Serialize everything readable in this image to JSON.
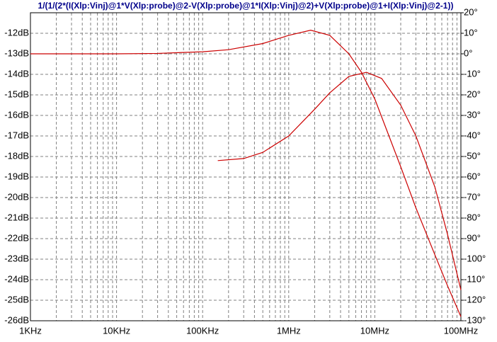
{
  "chart_data": {
    "type": "line",
    "title": "1/(1/(2*(I(Xlp:Vinj)@1*V(Xlp:probe)@2-V(Xlp:probe)@1*I(Xlp:Vinj)@2)+V(Xlp:probe)@1+I(Xlp:Vinj)@2-1))",
    "xscale": "log",
    "xlim": [
      1000,
      100000000
    ],
    "xticks": [
      {
        "value": 1000,
        "label": "1KHz"
      },
      {
        "value": 10000,
        "label": "10KHz"
      },
      {
        "value": 100000,
        "label": "100KHz"
      },
      {
        "value": 1000000,
        "label": "1MHz"
      },
      {
        "value": 10000000,
        "label": "10MHz"
      },
      {
        "value": 100000000,
        "label": "100MHz"
      }
    ],
    "xminorticks": [
      2000,
      3000,
      4000,
      5000,
      6000,
      7000,
      8000,
      9000,
      20000,
      30000,
      40000,
      50000,
      60000,
      70000,
      80000,
      90000,
      200000,
      300000,
      400000,
      500000,
      600000,
      700000,
      800000,
      900000,
      2000000,
      3000000,
      4000000,
      5000000,
      6000000,
      7000000,
      8000000,
      9000000,
      20000000,
      30000000,
      40000000,
      50000000,
      60000000,
      70000000,
      80000000,
      90000000
    ],
    "ylim": [
      -26,
      -11
    ],
    "yticks": [
      {
        "value": -12,
        "label": "-12dB"
      },
      {
        "value": -13,
        "label": "-13dB"
      },
      {
        "value": -14,
        "label": "-14dB"
      },
      {
        "value": -15,
        "label": "-15dB"
      },
      {
        "value": -16,
        "label": "-16dB"
      },
      {
        "value": -17,
        "label": "-17dB"
      },
      {
        "value": -18,
        "label": "-18dB"
      },
      {
        "value": -19,
        "label": "-19dB"
      },
      {
        "value": -20,
        "label": "-20dB"
      },
      {
        "value": -21,
        "label": "-21dB"
      },
      {
        "value": -22,
        "label": "-22dB"
      },
      {
        "value": -23,
        "label": "-23dB"
      },
      {
        "value": -24,
        "label": "-24dB"
      },
      {
        "value": -25,
        "label": "-25dB"
      },
      {
        "value": -26,
        "label": "-26dB"
      }
    ],
    "y2lim": [
      -130,
      20
    ],
    "y2ticks": [
      {
        "value": 20,
        "label": "20°"
      },
      {
        "value": 10,
        "label": "10°"
      },
      {
        "value": 0,
        "label": "0°"
      },
      {
        "value": -10,
        "label": "-10°"
      },
      {
        "value": -20,
        "label": "-20°"
      },
      {
        "value": -30,
        "label": "-30°"
      },
      {
        "value": -40,
        "label": "-40°"
      },
      {
        "value": -50,
        "label": "-50°"
      },
      {
        "value": -60,
        "label": "-60°"
      },
      {
        "value": -70,
        "label": "-70°"
      },
      {
        "value": -80,
        "label": "-80°"
      },
      {
        "value": -90,
        "label": "-90°"
      },
      {
        "value": -100,
        "label": "-100°"
      },
      {
        "value": -110,
        "label": "-110°"
      },
      {
        "value": -120,
        "label": "-120°"
      },
      {
        "value": -130,
        "label": "-130°"
      }
    ],
    "grid": true,
    "series": [
      {
        "color": "#cc0000",
        "axis": "y",
        "x": [
          1000,
          10000,
          30000,
          100000,
          200000,
          500000,
          1000000,
          1800000,
          3000000,
          5000000,
          7000000,
          10000000,
          20000000,
          30000000,
          50000000,
          70000000,
          100000000
        ],
        "values": [
          -13,
          -13,
          -12.98,
          -12.9,
          -12.8,
          -12.5,
          -12.1,
          -11.85,
          -12.1,
          -13.0,
          -13.9,
          -15.2,
          -18.5,
          -20.5,
          -22.8,
          -24.3,
          -25.8
        ]
      },
      {
        "color": "#cc0000",
        "axis": "y2",
        "x": [
          150000,
          300000,
          500000,
          1000000,
          2000000,
          3000000,
          5000000,
          8000000,
          12000000,
          20000000,
          30000000,
          50000000,
          70000000,
          100000000
        ],
        "values": [
          -52,
          -51,
          -48,
          -40,
          -27,
          -19,
          -11,
          -9,
          -12,
          -25,
          -40,
          -65,
          -88,
          -115
        ]
      }
    ]
  }
}
